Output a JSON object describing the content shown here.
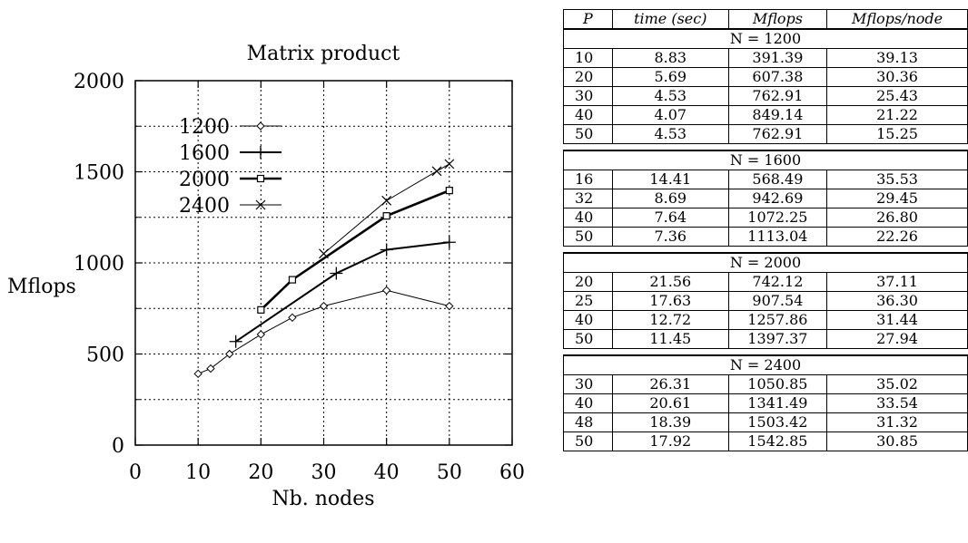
{
  "chart_data": {
    "type": "line",
    "title": "Matrix product",
    "xlabel": "Nb. nodes",
    "ylabel": "Mflops",
    "xlim": [
      0,
      60
    ],
    "ylim": [
      0,
      2000
    ],
    "xticks": [
      "0",
      "10",
      "20",
      "30",
      "40",
      "50",
      "60"
    ],
    "yticks": [
      "0",
      "500",
      "1000",
      "1500",
      "2000"
    ],
    "grid": true,
    "legend_position": "top-left",
    "series": [
      {
        "name": "1200",
        "marker": "diamond",
        "x": [
          10,
          12,
          15,
          20,
          25,
          30,
          40,
          50
        ],
        "values": [
          391.39,
          420,
          500,
          607.38,
          700,
          762.91,
          849.14,
          762.91
        ]
      },
      {
        "name": "1600",
        "marker": "plus",
        "x": [
          16,
          32,
          40,
          50
        ],
        "values": [
          568.49,
          942.69,
          1072.25,
          1113.04
        ]
      },
      {
        "name": "2000",
        "marker": "square",
        "x": [
          20,
          25,
          40,
          50
        ],
        "values": [
          742.12,
          907.54,
          1257.86,
          1397.37
        ]
      },
      {
        "name": "2400",
        "marker": "cross",
        "x": [
          30,
          40,
          48,
          50
        ],
        "values": [
          1050.85,
          1341.49,
          1503.42,
          1542.85
        ]
      }
    ]
  },
  "table": {
    "headers": [
      "P",
      "time (sec)",
      "Mflops",
      "Mflops/node"
    ],
    "groups": [
      {
        "label": "N = 1200",
        "rows": [
          [
            "10",
            "8.83",
            "391.39",
            "39.13"
          ],
          [
            "20",
            "5.69",
            "607.38",
            "30.36"
          ],
          [
            "30",
            "4.53",
            "762.91",
            "25.43"
          ],
          [
            "40",
            "4.07",
            "849.14",
            "21.22"
          ],
          [
            "50",
            "4.53",
            "762.91",
            "15.25"
          ]
        ]
      },
      {
        "label": "N = 1600",
        "rows": [
          [
            "16",
            "14.41",
            "568.49",
            "35.53"
          ],
          [
            "32",
            "8.69",
            "942.69",
            "29.45"
          ],
          [
            "40",
            "7.64",
            "1072.25",
            "26.80"
          ],
          [
            "50",
            "7.36",
            "1113.04",
            "22.26"
          ]
        ]
      },
      {
        "label": "N = 2000",
        "rows": [
          [
            "20",
            "21.56",
            "742.12",
            "37.11"
          ],
          [
            "25",
            "17.63",
            "907.54",
            "36.30"
          ],
          [
            "40",
            "12.72",
            "1257.86",
            "31.44"
          ],
          [
            "50",
            "11.45",
            "1397.37",
            "27.94"
          ]
        ]
      },
      {
        "label": "N = 2400",
        "rows": [
          [
            "30",
            "26.31",
            "1050.85",
            "35.02"
          ],
          [
            "40",
            "20.61",
            "1341.49",
            "33.54"
          ],
          [
            "48",
            "18.39",
            "1503.42",
            "31.32"
          ],
          [
            "50",
            "17.92",
            "1542.85",
            "30.85"
          ]
        ]
      }
    ]
  }
}
